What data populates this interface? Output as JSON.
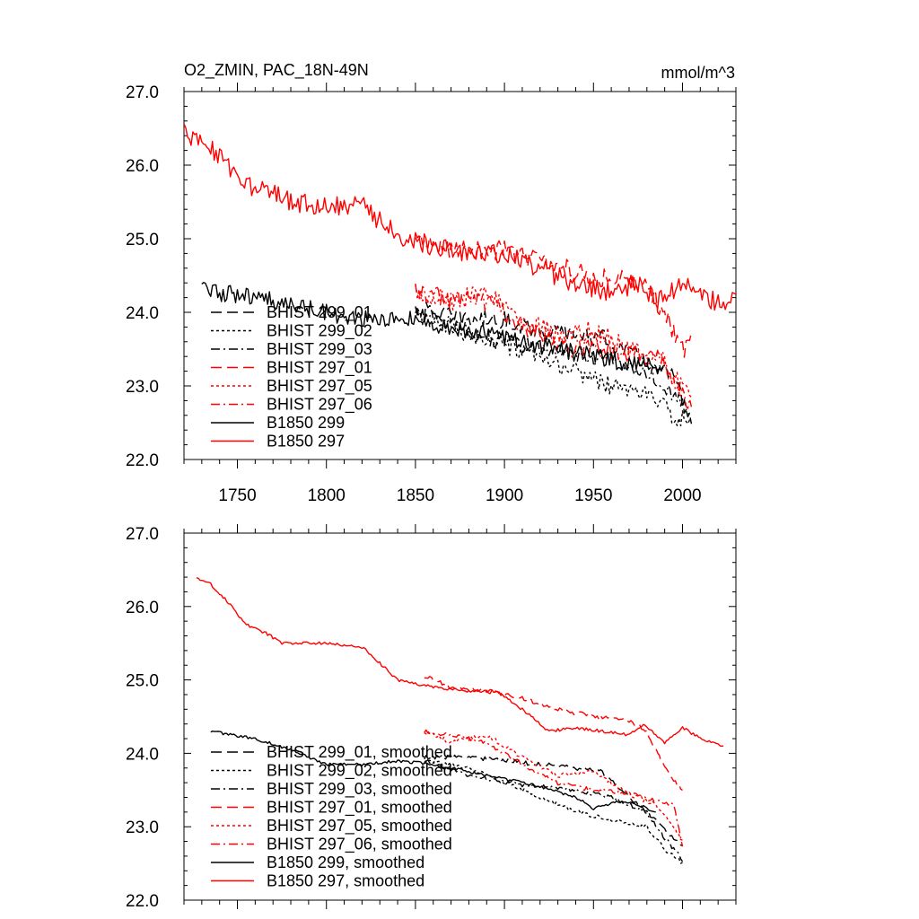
{
  "chart_data": [
    {
      "type": "line",
      "title_left": "O2_ZMIN, PAC_18N-49N",
      "title_right": "mmol/m^3",
      "xlim": [
        1720,
        2030
      ],
      "ylim": [
        22.0,
        27.0
      ],
      "x_ticks": [
        1750,
        1800,
        1850,
        1900,
        1950,
        2000
      ],
      "y_ticks": [
        22.0,
        23.0,
        24.0,
        25.0,
        26.0,
        27.0
      ],
      "y_tick_labels": [
        "22.0",
        "23.0",
        "24.0",
        "25.0",
        "26.0",
        "27.0"
      ],
      "x_tick_labels": [
        "1750",
        "1800",
        "1850",
        "1900",
        "1950",
        "2000"
      ],
      "legend": [
        "BHIST 299_01",
        "BHIST 299_02",
        "BHIST 299_03",
        "BHIST 297_01",
        "BHIST 297_05",
        "BHIST 297_06",
        "B1850 299",
        "B1850 297"
      ],
      "series": [
        {
          "name": "BHIST 299_01",
          "color": "#000000",
          "dash": "long",
          "start": 1850,
          "end": 2005,
          "anchors": [
            [
              1850,
              24.05
            ],
            [
              1880,
              23.9
            ],
            [
              1900,
              23.9
            ],
            [
              1920,
              23.75
            ],
            [
              1940,
              23.7
            ],
            [
              1955,
              23.65
            ],
            [
              1970,
              23.45
            ],
            [
              1985,
              23.25
            ],
            [
              1995,
              23.1
            ],
            [
              2005,
              22.55
            ]
          ],
          "noise": 0.12
        },
        {
          "name": "BHIST 299_02",
          "color": "#000000",
          "dash": "dot",
          "start": 1850,
          "end": 2005,
          "anchors": [
            [
              1850,
              23.95
            ],
            [
              1880,
              23.7
            ],
            [
              1900,
              23.55
            ],
            [
              1920,
              23.35
            ],
            [
              1940,
              23.2
            ],
            [
              1960,
              23.0
            ],
            [
              1980,
              22.9
            ],
            [
              1995,
              22.6
            ],
            [
              2005,
              22.5
            ]
          ],
          "noise": 0.12
        },
        {
          "name": "BHIST 299_03",
          "color": "#000000",
          "dash": "dashdot",
          "start": 1850,
          "end": 2005,
          "anchors": [
            [
              1850,
              24.0
            ],
            [
              1880,
              23.75
            ],
            [
              1900,
              23.6
            ],
            [
              1920,
              23.5
            ],
            [
              1940,
              23.45
            ],
            [
              1960,
              23.35
            ],
            [
              1980,
              23.2
            ],
            [
              1995,
              22.9
            ],
            [
              2005,
              22.55
            ]
          ],
          "noise": 0.12
        },
        {
          "name": "BHIST 297_01",
          "color": "#ff0000",
          "dash": "long",
          "start": 1850,
          "end": 2005,
          "anchors": [
            [
              1850,
              24.95
            ],
            [
              1880,
              24.85
            ],
            [
              1900,
              24.85
            ],
            [
              1920,
              24.7
            ],
            [
              1940,
              24.55
            ],
            [
              1960,
              24.45
            ],
            [
              1975,
              24.45
            ],
            [
              1990,
              24.0
            ],
            [
              2000,
              23.5
            ],
            [
              2005,
              23.6
            ]
          ],
          "noise": 0.14
        },
        {
          "name": "BHIST 297_05",
          "color": "#ff0000",
          "dash": "dot",
          "start": 1850,
          "end": 2005,
          "anchors": [
            [
              1850,
              24.3
            ],
            [
              1870,
              24.15
            ],
            [
              1890,
              24.25
            ],
            [
              1910,
              23.9
            ],
            [
              1930,
              23.7
            ],
            [
              1950,
              23.75
            ],
            [
              1970,
              23.5
            ],
            [
              1990,
              23.3
            ],
            [
              2000,
              22.95
            ],
            [
              2005,
              22.8
            ]
          ],
          "noise": 0.14
        },
        {
          "name": "BHIST 297_06",
          "color": "#ff0000",
          "dash": "dashdot",
          "start": 1850,
          "end": 2005,
          "anchors": [
            [
              1850,
              24.3
            ],
            [
              1870,
              24.2
            ],
            [
              1890,
              24.15
            ],
            [
              1910,
              23.8
            ],
            [
              1930,
              23.55
            ],
            [
              1950,
              23.5
            ],
            [
              1970,
              23.45
            ],
            [
              1990,
              23.35
            ],
            [
              2000,
              22.9
            ],
            [
              2005,
              22.75
            ]
          ],
          "noise": 0.14
        },
        {
          "name": "B1850 299",
          "color": "#000000",
          "dash": "solid",
          "start": 1730,
          "end": 1990,
          "anchors": [
            [
              1730,
              24.3
            ],
            [
              1760,
              24.2
            ],
            [
              1790,
              24.05
            ],
            [
              1820,
              23.9
            ],
            [
              1850,
              23.9
            ],
            [
              1880,
              23.75
            ],
            [
              1900,
              23.65
            ],
            [
              1920,
              23.55
            ],
            [
              1940,
              23.45
            ],
            [
              1960,
              23.35
            ],
            [
              1975,
              23.3
            ],
            [
              1990,
              23.25
            ]
          ],
          "noise": 0.12
        },
        {
          "name": "B1850 297",
          "color": "#ff0000",
          "dash": "solid",
          "start": 1720,
          "end": 2030,
          "anchors": [
            [
              1720,
              26.45
            ],
            [
              1735,
              26.25
            ],
            [
              1745,
              26.0
            ],
            [
              1755,
              25.7
            ],
            [
              1765,
              25.65
            ],
            [
              1780,
              25.5
            ],
            [
              1800,
              25.45
            ],
            [
              1820,
              25.45
            ],
            [
              1840,
              25.05
            ],
            [
              1860,
              24.9
            ],
            [
              1880,
              24.8
            ],
            [
              1900,
              24.8
            ],
            [
              1920,
              24.6
            ],
            [
              1940,
              24.35
            ],
            [
              1955,
              24.3
            ],
            [
              1965,
              24.25
            ],
            [
              1975,
              24.4
            ],
            [
              1985,
              24.15
            ],
            [
              1995,
              24.3
            ],
            [
              2005,
              24.35
            ],
            [
              2015,
              24.15
            ],
            [
              2030,
              24.15
            ]
          ],
          "noise": 0.14
        }
      ]
    },
    {
      "type": "line",
      "xlim": [
        1720,
        2030
      ],
      "ylim": [
        22.0,
        27.0
      ],
      "x_ticks": [
        1750,
        1800,
        1850,
        1900,
        1950,
        2000
      ],
      "y_ticks": [
        22.0,
        23.0,
        24.0,
        25.0,
        26.0,
        27.0
      ],
      "y_tick_labels": [
        "22.0",
        "23.0",
        "24.0",
        "25.0",
        "26.0",
        "27.0"
      ],
      "legend": [
        "BHIST 299_01, smoothed",
        "BHIST 299_02, smoothed",
        "BHIST 299_03, smoothed",
        "BHIST 297_01, smoothed",
        "BHIST 297_05, smoothed",
        "BHIST 297_06, smoothed",
        "B1850 299, smoothed",
        "B1850 297, smoothed"
      ],
      "series": [
        {
          "name": "BHIST 299_01, smoothed",
          "color": "#000000",
          "dash": "long",
          "start": 1855,
          "end": 2000,
          "anchors": [
            [
              1855,
              23.95
            ],
            [
              1880,
              23.95
            ],
            [
              1900,
              23.9
            ],
            [
              1920,
              23.85
            ],
            [
              1940,
              23.8
            ],
            [
              1955,
              23.75
            ],
            [
              1970,
              23.4
            ],
            [
              1985,
              23.1
            ],
            [
              1995,
              22.85
            ],
            [
              2000,
              22.75
            ]
          ],
          "noise": 0.03
        },
        {
          "name": "BHIST 299_02, smoothed",
          "color": "#000000",
          "dash": "dot",
          "start": 1855,
          "end": 2000,
          "anchors": [
            [
              1855,
              23.9
            ],
            [
              1880,
              23.8
            ],
            [
              1900,
              23.6
            ],
            [
              1920,
              23.4
            ],
            [
              1940,
              23.2
            ],
            [
              1960,
              23.1
            ],
            [
              1980,
              23.0
            ],
            [
              1990,
              22.7
            ],
            [
              2000,
              22.5
            ]
          ],
          "noise": 0.03
        },
        {
          "name": "BHIST 299_03, smoothed",
          "color": "#000000",
          "dash": "dashdot",
          "start": 1855,
          "end": 2000,
          "anchors": [
            [
              1855,
              23.9
            ],
            [
              1880,
              23.7
            ],
            [
              1900,
              23.6
            ],
            [
              1920,
              23.55
            ],
            [
              1940,
              23.5
            ],
            [
              1960,
              23.4
            ],
            [
              1980,
              23.2
            ],
            [
              1990,
              22.85
            ],
            [
              2000,
              22.55
            ]
          ],
          "noise": 0.03
        },
        {
          "name": "BHIST 297_01, smoothed",
          "color": "#ff0000",
          "dash": "long",
          "start": 1855,
          "end": 2000,
          "anchors": [
            [
              1855,
              25.05
            ],
            [
              1870,
              24.9
            ],
            [
              1890,
              24.85
            ],
            [
              1910,
              24.75
            ],
            [
              1930,
              24.6
            ],
            [
              1950,
              24.5
            ],
            [
              1970,
              24.45
            ],
            [
              1980,
              24.3
            ],
            [
              1990,
              23.8
            ],
            [
              2000,
              23.5
            ]
          ],
          "noise": 0.03
        },
        {
          "name": "BHIST 297_05, smoothed",
          "color": "#ff0000",
          "dash": "dot",
          "start": 1855,
          "end": 2000,
          "anchors": [
            [
              1855,
              24.3
            ],
            [
              1870,
              24.15
            ],
            [
              1890,
              24.25
            ],
            [
              1910,
              23.95
            ],
            [
              1930,
              23.7
            ],
            [
              1950,
              23.75
            ],
            [
              1970,
              23.45
            ],
            [
              1985,
              23.3
            ],
            [
              1995,
              23.0
            ],
            [
              2000,
              22.8
            ]
          ],
          "noise": 0.03
        },
        {
          "name": "BHIST 297_06, smoothed",
          "color": "#ff0000",
          "dash": "dashdot",
          "start": 1855,
          "end": 2000,
          "anchors": [
            [
              1855,
              24.3
            ],
            [
              1870,
              24.25
            ],
            [
              1890,
              24.15
            ],
            [
              1910,
              23.85
            ],
            [
              1930,
              23.6
            ],
            [
              1950,
              23.5
            ],
            [
              1970,
              23.45
            ],
            [
              1985,
              23.35
            ],
            [
              1995,
              23.3
            ],
            [
              2000,
              22.75
            ]
          ],
          "noise": 0.03
        },
        {
          "name": "B1850 299, smoothed",
          "color": "#000000",
          "dash": "solid",
          "start": 1735,
          "end": 1985,
          "anchors": [
            [
              1735,
              24.3
            ],
            [
              1760,
              24.2
            ],
            [
              1780,
              24.05
            ],
            [
              1800,
              23.85
            ],
            [
              1820,
              23.85
            ],
            [
              1840,
              23.9
            ],
            [
              1860,
              23.85
            ],
            [
              1880,
              23.75
            ],
            [
              1900,
              23.65
            ],
            [
              1920,
              23.55
            ],
            [
              1940,
              23.4
            ],
            [
              1950,
              23.25
            ],
            [
              1965,
              23.35
            ],
            [
              1975,
              23.3
            ],
            [
              1985,
              23.2
            ]
          ],
          "noise": 0.02
        },
        {
          "name": "B1850 297, smoothed",
          "color": "#ff0000",
          "dash": "solid",
          "start": 1727,
          "end": 2023,
          "anchors": [
            [
              1727,
              26.4
            ],
            [
              1735,
              26.3
            ],
            [
              1745,
              26.05
            ],
            [
              1755,
              25.75
            ],
            [
              1765,
              25.65
            ],
            [
              1775,
              25.5
            ],
            [
              1800,
              25.5
            ],
            [
              1820,
              25.45
            ],
            [
              1840,
              25.0
            ],
            [
              1860,
              24.9
            ],
            [
              1880,
              24.85
            ],
            [
              1895,
              24.85
            ],
            [
              1910,
              24.6
            ],
            [
              1925,
              24.3
            ],
            [
              1940,
              24.35
            ],
            [
              1955,
              24.3
            ],
            [
              1970,
              24.25
            ],
            [
              1978,
              24.4
            ],
            [
              1990,
              24.15
            ],
            [
              2000,
              24.35
            ],
            [
              2010,
              24.2
            ],
            [
              2023,
              24.1
            ]
          ],
          "noise": 0.02
        }
      ]
    }
  ]
}
